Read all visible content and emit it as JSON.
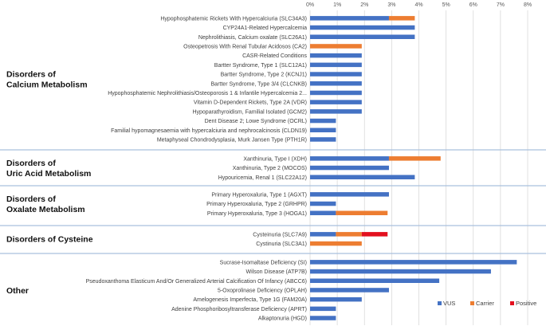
{
  "chart_data": {
    "type": "bar",
    "orientation": "horizontal",
    "stacked": true,
    "xlim": [
      0,
      8
    ],
    "x_tick_labels": [
      "0%",
      "1%",
      "2%",
      "3%",
      "4%",
      "5%",
      "6%",
      "7%",
      "8%"
    ],
    "series_names": [
      "VUS",
      "Carrier",
      "Positive"
    ],
    "colors": {
      "VUS": "#4472c4",
      "Carrier": "#ed7d31",
      "Positive": "#e3101e",
      "grid": "#d9d9d9",
      "divider": "#a9c0de"
    },
    "groups": [
      {
        "title_lines": [
          "Disorders of",
          "Calcium Metabolism"
        ],
        "rows": [
          {
            "label": "Hypophosphatemic Rickets With Hypercalciuria (SLC34A3)",
            "VUS": 2.9,
            "Carrier": 0.95,
            "Positive": 0
          },
          {
            "label": "CYP24A1-Related Hypercalcemia",
            "VUS": 3.85,
            "Carrier": 0,
            "Positive": 0
          },
          {
            "label": "Nephrolithiasis, Calcium oxalate (SLC26A1)",
            "VUS": 3.85,
            "Carrier": 0,
            "Positive": 0
          },
          {
            "label": "Osteopetrosis With Renal Tubular Acidosos (CA2)",
            "VUS": 0,
            "Carrier": 1.9,
            "Positive": 0
          },
          {
            "label": "CASR-Related Conditions",
            "VUS": 1.9,
            "Carrier": 0,
            "Positive": 0
          },
          {
            "label": "Bartter Syndrome, Type 1 (SLC12A1)",
            "VUS": 1.9,
            "Carrier": 0,
            "Positive": 0
          },
          {
            "label": "Bartter Syndrome, Type 2 (KCNJ1)",
            "VUS": 1.9,
            "Carrier": 0,
            "Positive": 0
          },
          {
            "label": "Bartter Syndrome, Type 3/4 (CLCNKB)",
            "VUS": 1.9,
            "Carrier": 0,
            "Positive": 0
          },
          {
            "label": "Hypophosphatemic Nephrolithiasis/Osteoporosis 1 & Infantile Hypercalcemia 2...",
            "VUS": 1.9,
            "Carrier": 0,
            "Positive": 0
          },
          {
            "label": "Vitamin D-Dependent Rickets,  Type 2A (VDR)",
            "VUS": 1.9,
            "Carrier": 0,
            "Positive": 0
          },
          {
            "label": "Hypoparathyroidism, Familial Isolated (GCM2)",
            "VUS": 1.9,
            "Carrier": 0,
            "Positive": 0
          },
          {
            "label": "Dent Disease 2; Lowe Syndrome (OCRL)",
            "VUS": 0.95,
            "Carrier": 0,
            "Positive": 0
          },
          {
            "label": "Familial hypomagnesaemia with hypercalciuria and nephrocalcinosis (CLDN19)",
            "VUS": 0.95,
            "Carrier": 0,
            "Positive": 0
          },
          {
            "label": "Metaphyseal Chondrodysplasia, Murk Jansen Type (PTH1R)",
            "VUS": 0.95,
            "Carrier": 0,
            "Positive": 0
          }
        ]
      },
      {
        "title_lines": [
          "Disorders of",
          "Uric Acid Metabolism"
        ],
        "rows": [
          {
            "label": "Xanthinuria, Type I (XDH)",
            "VUS": 2.9,
            "Carrier": 1.9,
            "Positive": 0
          },
          {
            "label": "Xanthinuria, Type 2 (MOCOS)",
            "VUS": 2.9,
            "Carrier": 0,
            "Positive": 0
          },
          {
            "label": "Hypouricemia, Renal 1 (SLC22A12)",
            "VUS": 3.85,
            "Carrier": 0,
            "Positive": 0
          }
        ]
      },
      {
        "title_lines": [
          "Disorders of",
          "Oxalate Metabolism"
        ],
        "rows": [
          {
            "label": "Primary Hyperoxaluria, Type 1 (AGXT)",
            "VUS": 2.9,
            "Carrier": 0,
            "Positive": 0
          },
          {
            "label": "Primary Hyperoxaluria, Type 2 (GRHPR)",
            "VUS": 0.95,
            "Carrier": 0,
            "Positive": 0
          },
          {
            "label": "Primary Hyperoxaluria, Type 3 (HOGA1)",
            "VUS": 0.95,
            "Carrier": 1.9,
            "Positive": 0
          }
        ]
      },
      {
        "title_lines": [
          "Disorders of Cysteine"
        ],
        "rows": [
          {
            "label": "Cysteinuria (SLC7A9)",
            "VUS": 0.95,
            "Carrier": 0.95,
            "Positive": 0.95
          },
          {
            "label": "Cystinuria (SLC3A1)",
            "VUS": 0,
            "Carrier": 1.9,
            "Positive": 0
          }
        ]
      },
      {
        "title_lines": [
          "Other"
        ],
        "rows": [
          {
            "label": "Sucrase-Isomaltase Deficiency (SI)",
            "VUS": 7.6,
            "Carrier": 0,
            "Positive": 0
          },
          {
            "label": "Wilson Disease (ATP7B)",
            "VUS": 6.65,
            "Carrier": 0,
            "Positive": 0
          },
          {
            "label": "Pseudoxanthoma Elasticum And/Or Generalized Arterial Calcification Of Infancy (ABCC6)",
            "VUS": 4.75,
            "Carrier": 0,
            "Positive": 0
          },
          {
            "label": "5-Oxoprolinase Deficiency (OPLAH)",
            "VUS": 2.9,
            "Carrier": 0,
            "Positive": 0
          },
          {
            "label": "Amelogenesis Imperfecta, Type 1G (FAM20A)",
            "VUS": 1.9,
            "Carrier": 0,
            "Positive": 0
          },
          {
            "label": "Adenine Phosphoribosyltransferase Deficiency (APRT)",
            "VUS": 0.95,
            "Carrier": 0,
            "Positive": 0
          },
          {
            "label": "Alkaptonuria (HGD)",
            "VUS": 0.95,
            "Carrier": 0,
            "Positive": 0
          }
        ]
      }
    ],
    "legend": {
      "position": "bottom-right",
      "items": [
        "VUS",
        "Carrier",
        "Positive"
      ]
    }
  }
}
